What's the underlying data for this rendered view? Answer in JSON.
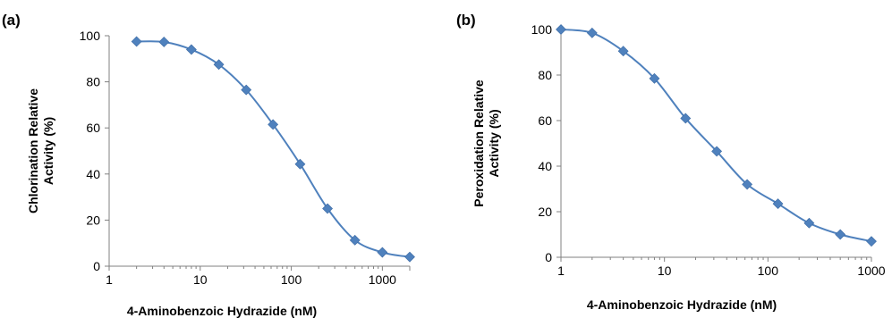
{
  "chart_data": [
    {
      "type": "scatter",
      "panel_label": "(a)",
      "xlabel": "4-Aminobenzoic Hydrazide (nM)",
      "ylabel_lines": [
        "Chlorination Relative",
        "Activity (%)"
      ],
      "x_scale": "log",
      "xlim": [
        1,
        2000
      ],
      "ylim": [
        0,
        100
      ],
      "xticks": [
        1,
        10,
        100,
        1000
      ],
      "xtick_labels": [
        "1",
        "10",
        "100",
        "1000"
      ],
      "yticks": [
        0,
        20,
        40,
        60,
        80,
        100
      ],
      "ytick_labels": [
        "0",
        "20",
        "40",
        "60",
        "80",
        "100"
      ],
      "grid": false,
      "series": [
        {
          "color": "#4F81BD",
          "marker": "diamond",
          "smooth_line": true,
          "x": [
            2,
            4,
            8,
            16,
            32,
            63,
            125,
            250,
            500,
            1000,
            2000
          ],
          "y": [
            97.5,
            97.3,
            94,
            87.5,
            76.5,
            61.5,
            44.3,
            25,
            11.3,
            6,
            4
          ]
        }
      ]
    },
    {
      "type": "scatter",
      "panel_label": "(b)",
      "xlabel": "4-Aminobenzoic Hydrazide (nM)",
      "ylabel_lines": [
        "Peroxidation Relative",
        "Activity (%)"
      ],
      "x_scale": "log",
      "xlim": [
        1,
        1000
      ],
      "ylim": [
        0,
        100
      ],
      "xticks": [
        1,
        10,
        100,
        1000
      ],
      "xtick_labels": [
        "1",
        "10",
        "100",
        "1000"
      ],
      "yticks": [
        0,
        20,
        40,
        60,
        80,
        100
      ],
      "ytick_labels": [
        "0",
        "20",
        "40",
        "60",
        "80",
        "100"
      ],
      "grid": false,
      "series": [
        {
          "color": "#4F81BD",
          "marker": "diamond",
          "smooth_line": true,
          "x": [
            1,
            2,
            4,
            8,
            16,
            32,
            63,
            125,
            250,
            500,
            1000
          ],
          "y": [
            100,
            98.5,
            90.5,
            78.5,
            61,
            46.5,
            32,
            23.5,
            15,
            10,
            7
          ]
        }
      ]
    }
  ]
}
